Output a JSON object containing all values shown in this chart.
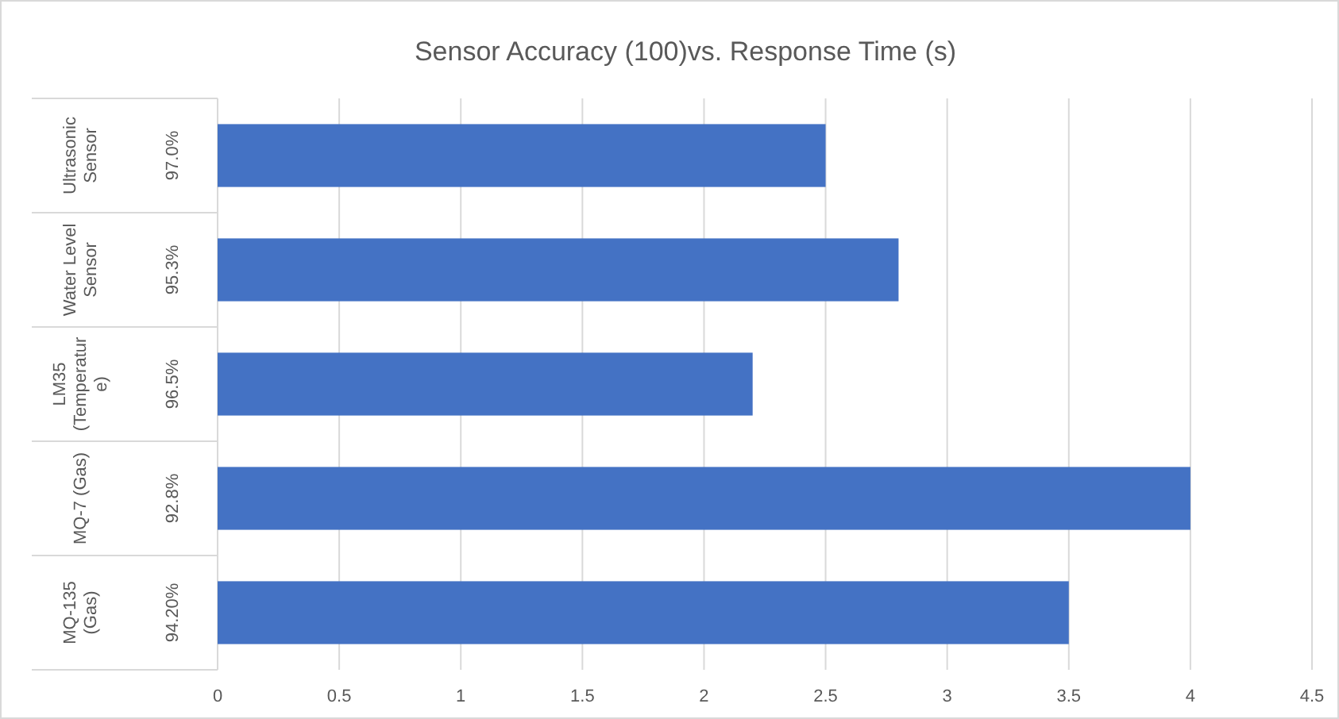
{
  "chart_data": {
    "type": "bar",
    "orientation": "horizontal",
    "title": "Sensor Accuracy (100)vs. Response Time (s)",
    "categories": [
      "Ultrasonic Sensor",
      "Water Level Sensor",
      "LM35 (Temperature)",
      "MQ-7 (Gas)",
      "MQ-135 (Gas)"
    ],
    "values": [
      2.5,
      2.8,
      2.2,
      4.0,
      3.5
    ],
    "color": "#4472c4",
    "xlim": [
      0,
      4.5
    ],
    "xticks": [
      0,
      0.5,
      1,
      1.5,
      2,
      2.5,
      3,
      3.5,
      4,
      4.5
    ],
    "grid": "x",
    "annotations": [
      "97.0%",
      "95.3%",
      "96.5%",
      "92.8%",
      "94.20%"
    ]
  }
}
